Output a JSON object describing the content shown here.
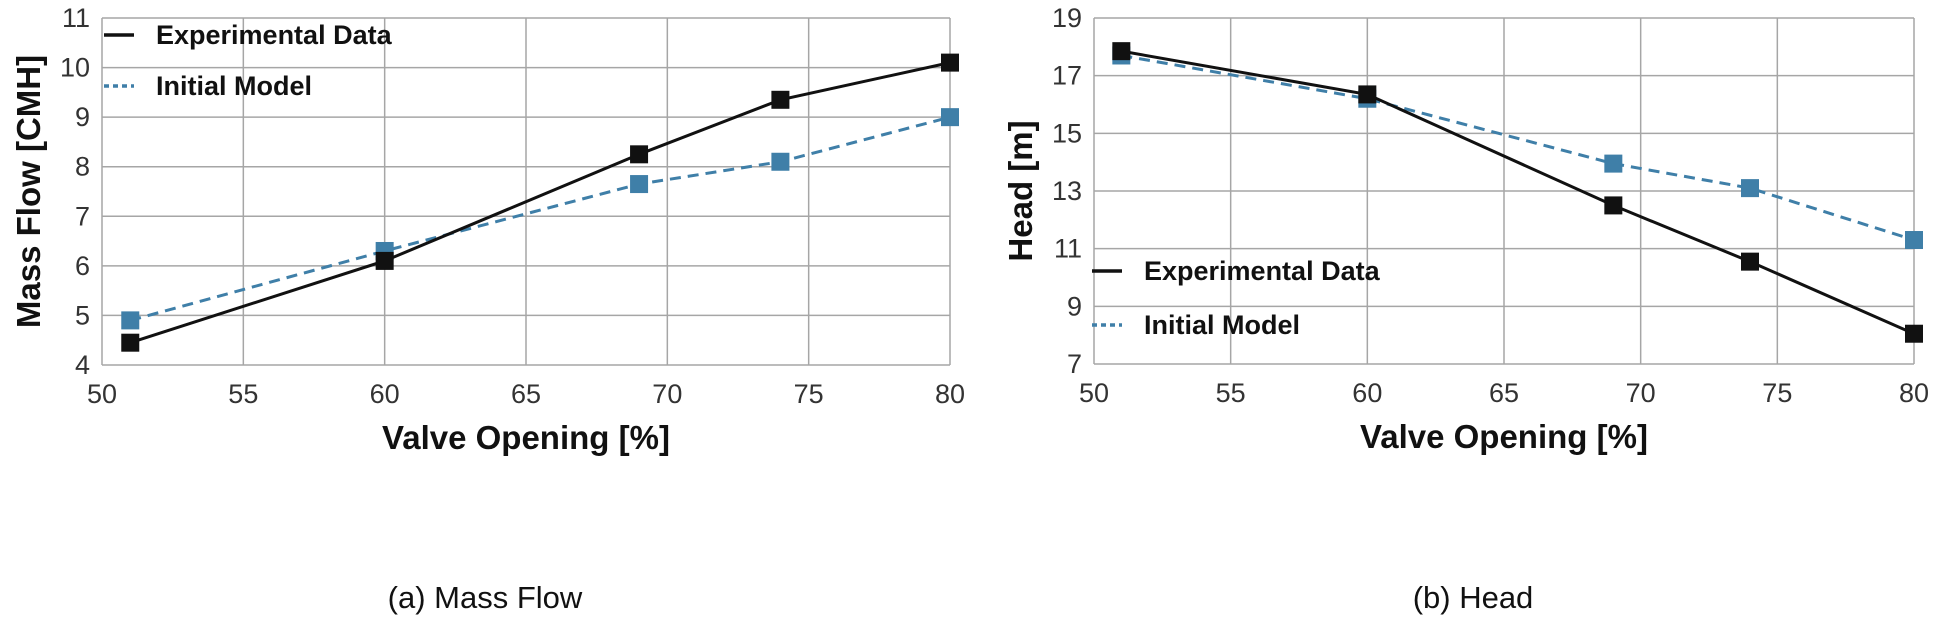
{
  "chart_data": [
    {
      "type": "line",
      "caption": "(a) Mass Flow",
      "xlabel": "Valve Opening [%]",
      "ylabel": "Mass Flow [CMH]",
      "xlim": [
        50,
        80
      ],
      "ylim": [
        4,
        11
      ],
      "xticks": [
        50,
        55,
        60,
        65,
        70,
        75,
        80
      ],
      "yticks": [
        4,
        5,
        6,
        7,
        8,
        9,
        10,
        11
      ],
      "grid": true,
      "legend_position": "top-left",
      "series": [
        {
          "name": "Experimental Data",
          "style": "solid",
          "color": "#111111",
          "marker": "square",
          "x": [
            51,
            60,
            69,
            74,
            80
          ],
          "y": [
            4.45,
            6.1,
            8.25,
            9.35,
            10.1
          ]
        },
        {
          "name": "Initial Model",
          "style": "dashed",
          "color": "#3f7fa8",
          "marker": "square",
          "x": [
            51,
            60,
            69,
            74,
            80
          ],
          "y": [
            4.9,
            6.3,
            7.65,
            8.1,
            9.0
          ]
        }
      ]
    },
    {
      "type": "line",
      "caption": "(b) Head",
      "xlabel": "Valve Opening [%]",
      "ylabel": "Head [m]",
      "xlim": [
        50,
        80
      ],
      "ylim": [
        7,
        19
      ],
      "xticks": [
        50,
        55,
        60,
        65,
        70,
        75,
        80
      ],
      "yticks": [
        7,
        9,
        11,
        13,
        15,
        17,
        19
      ],
      "grid": true,
      "legend_position": "bottom-left",
      "series": [
        {
          "name": "Experimental Data",
          "style": "solid",
          "color": "#111111",
          "marker": "square",
          "x": [
            51,
            60,
            69,
            74,
            80
          ],
          "y": [
            17.85,
            16.35,
            12.5,
            10.55,
            8.05
          ]
        },
        {
          "name": "Initial Model",
          "style": "dashed",
          "color": "#3f7fa8",
          "marker": "square",
          "x": [
            51,
            60,
            69,
            74,
            80
          ],
          "y": [
            17.7,
            16.2,
            13.95,
            13.1,
            11.3
          ]
        }
      ]
    }
  ]
}
